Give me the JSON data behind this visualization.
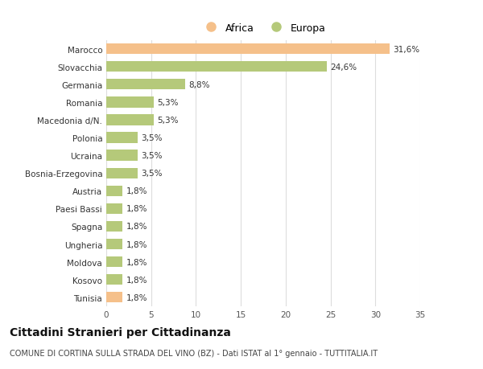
{
  "categories": [
    "Tunisia",
    "Kosovo",
    "Moldova",
    "Ungheria",
    "Spagna",
    "Paesi Bassi",
    "Austria",
    "Bosnia-Erzegovina",
    "Ucraina",
    "Polonia",
    "Macedonia d/N.",
    "Romania",
    "Germania",
    "Slovacchia",
    "Marocco"
  ],
  "values": [
    1.8,
    1.8,
    1.8,
    1.8,
    1.8,
    1.8,
    1.8,
    3.5,
    3.5,
    3.5,
    5.3,
    5.3,
    8.8,
    24.6,
    31.6
  ],
  "labels": [
    "1,8%",
    "1,8%",
    "1,8%",
    "1,8%",
    "1,8%",
    "1,8%",
    "1,8%",
    "3,5%",
    "3,5%",
    "3,5%",
    "5,3%",
    "5,3%",
    "8,8%",
    "24,6%",
    "31,6%"
  ],
  "colors": [
    "#f5c08a",
    "#b5c97a",
    "#b5c97a",
    "#b5c97a",
    "#b5c97a",
    "#b5c97a",
    "#b5c97a",
    "#b5c97a",
    "#b5c97a",
    "#b5c97a",
    "#b5c97a",
    "#b5c97a",
    "#b5c97a",
    "#b5c97a",
    "#f5c08a"
  ],
  "legend_africa_color": "#f5c08a",
  "legend_europa_color": "#b5c97a",
  "title_bold": "Cittadini Stranieri per Cittadinanza",
  "subtitle": "COMUNE DI CORTINA SULLA STRADA DEL VINO (BZ) - Dati ISTAT al 1° gennaio - TUTTITALIA.IT",
  "xlim": [
    0,
    35
  ],
  "xticks": [
    0,
    5,
    10,
    15,
    20,
    25,
    30,
    35
  ],
  "background_color": "#ffffff",
  "grid_color": "#dddddd",
  "bar_height": 0.6,
  "label_fontsize": 7.5,
  "tick_fontsize": 7.5,
  "title_fontsize": 10,
  "subtitle_fontsize": 7
}
